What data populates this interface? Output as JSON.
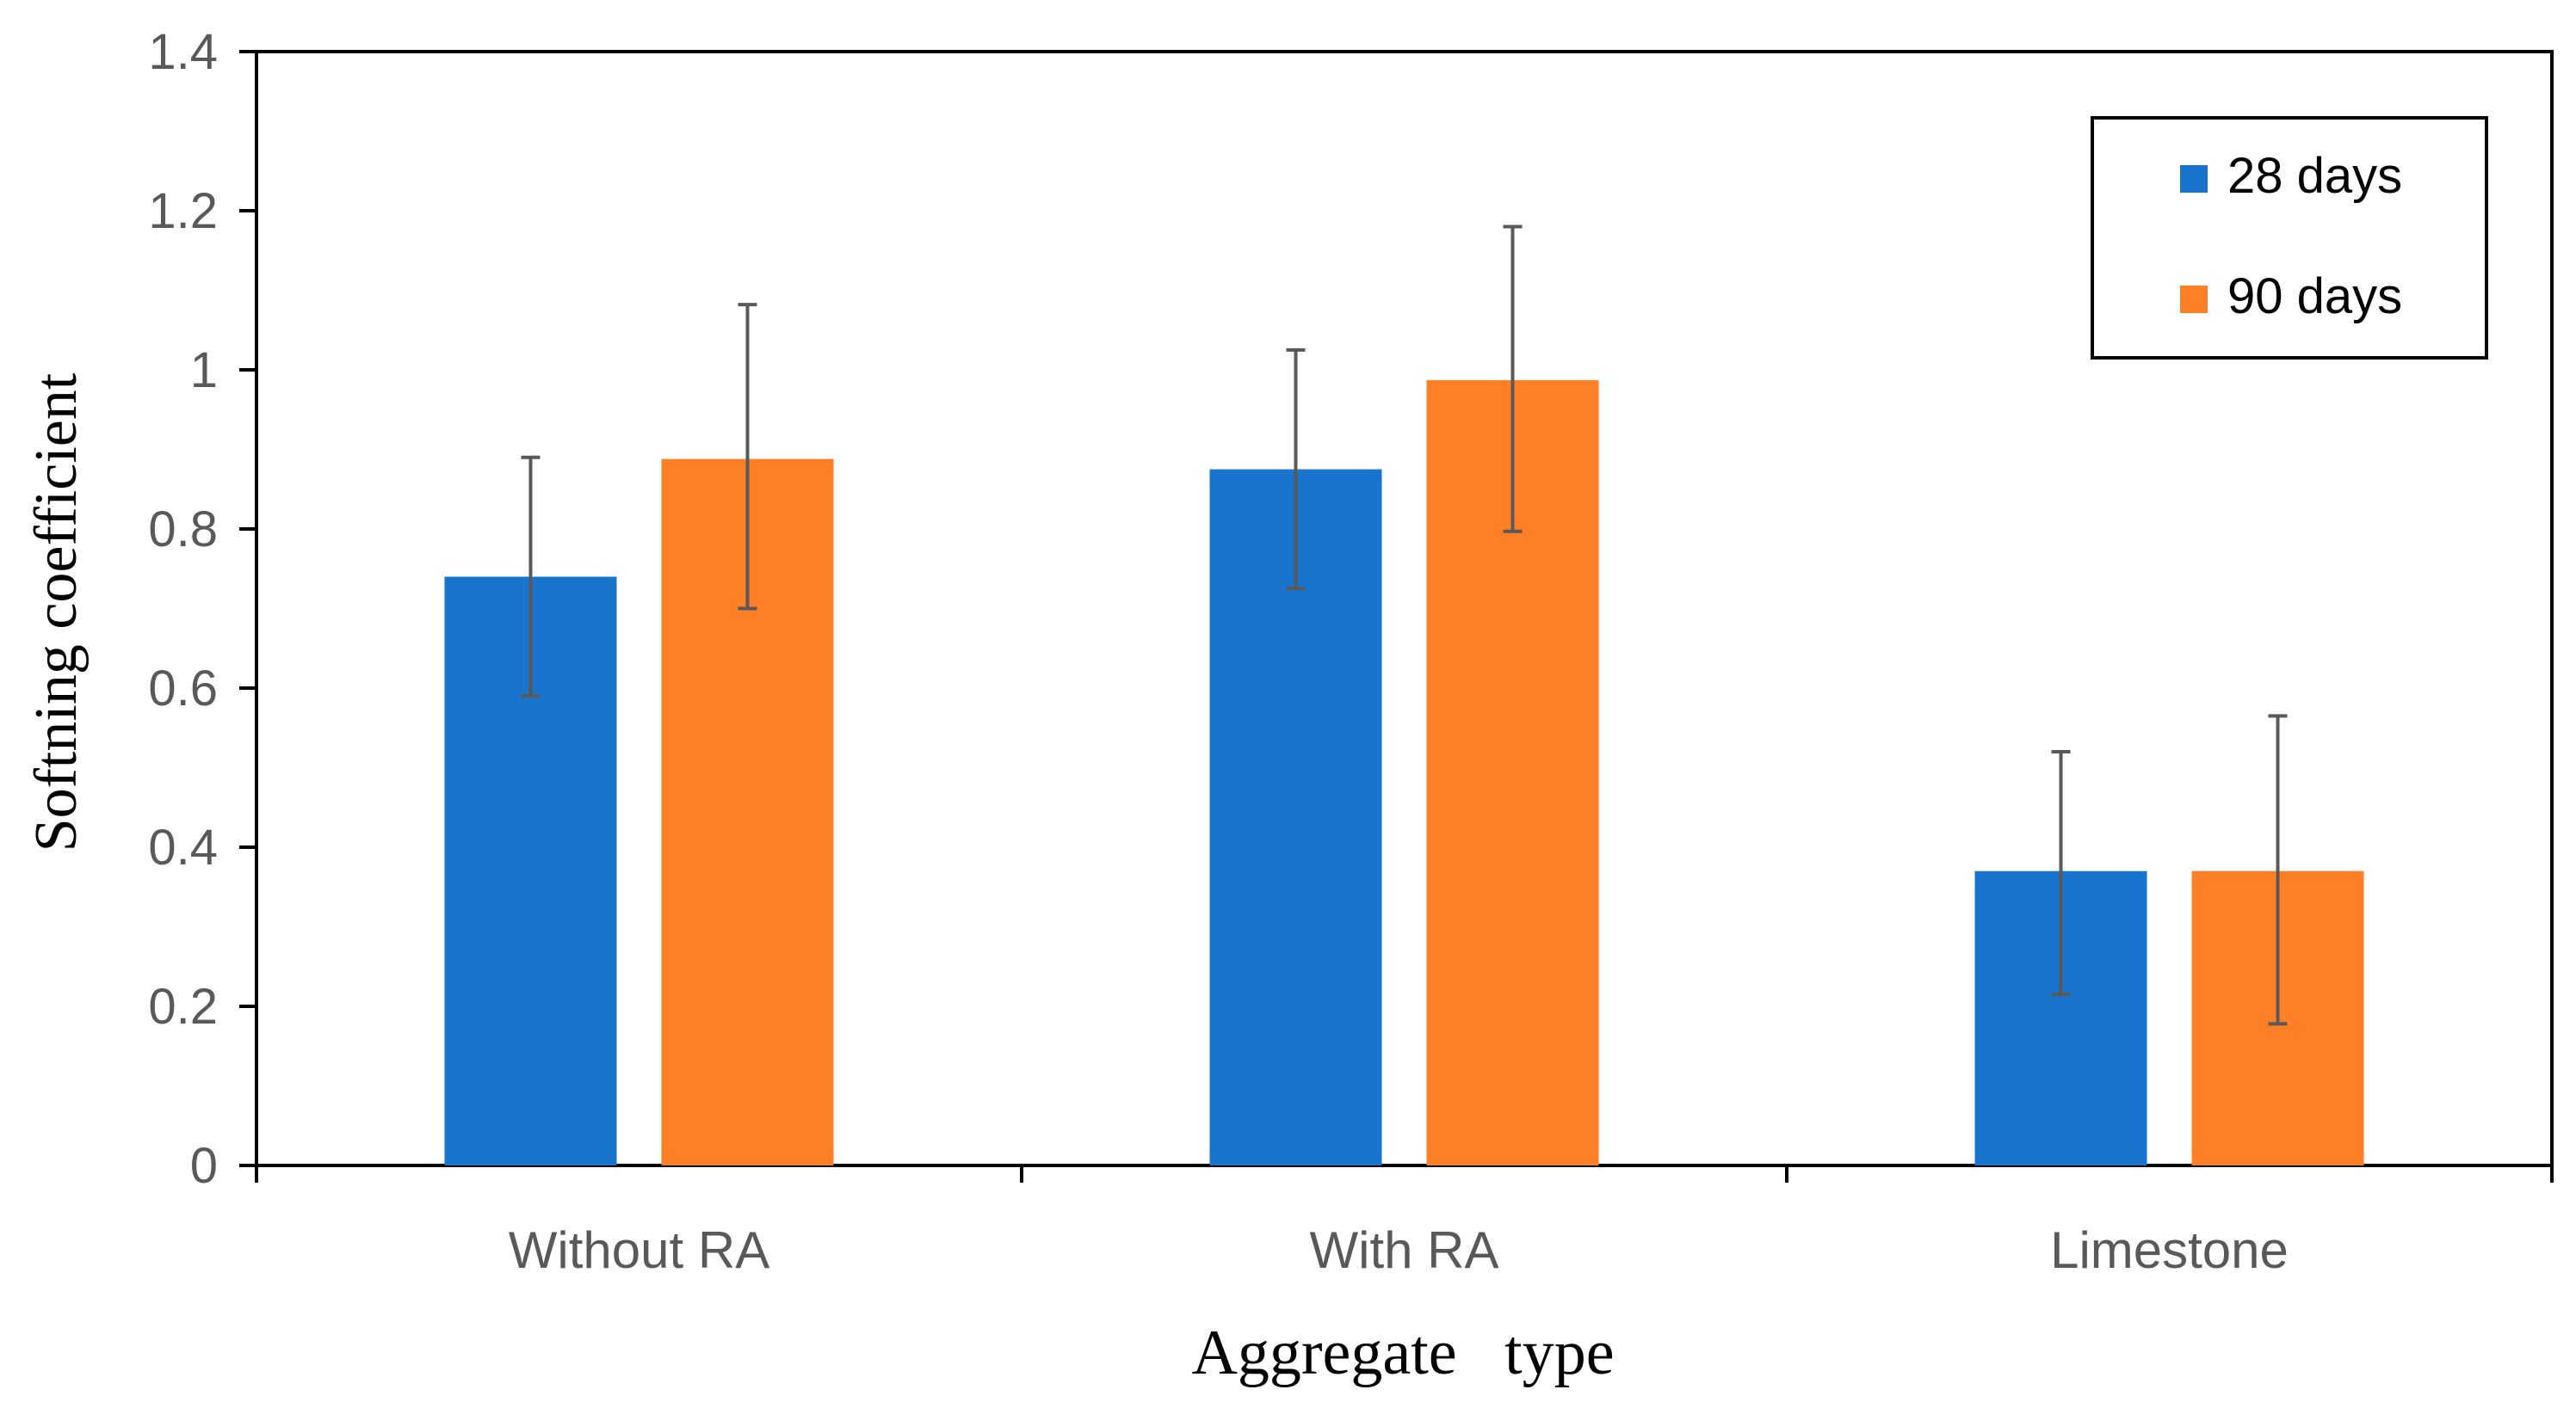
{
  "chart_data": {
    "type": "bar",
    "title": "",
    "xlabel": "Aggregate   type",
    "ylabel": "Softning coefficient",
    "categories": [
      "Without RA",
      "With RA",
      "Limestone"
    ],
    "ylim": [
      0,
      1.4
    ],
    "yticks": [
      0,
      0.2,
      0.4,
      0.6,
      0.8,
      1,
      1.2,
      1.4
    ],
    "ytick_labels": [
      "0",
      "0.2",
      "0.4",
      "0.6",
      "0.8",
      "1",
      "1.2",
      "1.4"
    ],
    "grid": false,
    "legend_position": "top-right",
    "series": [
      {
        "name": "28 days",
        "color": "#1874CD",
        "values": [
          0.74,
          0.875,
          0.37
        ],
        "error_low": [
          0.59,
          0.725,
          0.215
        ],
        "error_high": [
          0.89,
          1.025,
          0.52
        ]
      },
      {
        "name": "90 days",
        "color": "#FF7F27",
        "values": [
          0.888,
          0.987,
          0.37
        ],
        "error_low": [
          0.7,
          0.797,
          0.178
        ],
        "error_high": [
          1.082,
          1.18,
          0.565
        ]
      }
    ],
    "error_bar_color": "#595959"
  }
}
